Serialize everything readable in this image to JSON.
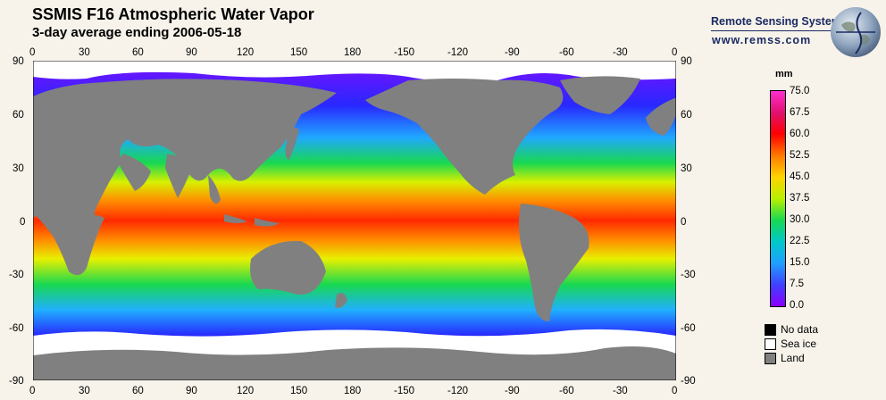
{
  "header": {
    "title": "SSMIS F16 Atmospheric Water Vapor",
    "subtitle": "3-day average ending 2006-05-18"
  },
  "branding": {
    "name": "Remote Sensing Systems",
    "url": "www.remss.com",
    "logo_icon": "globe-logo-icon"
  },
  "map": {
    "projection": "equirectangular",
    "lon_ticks_top": [
      "0",
      "30",
      "60",
      "90",
      "120",
      "150",
      "180",
      "-150",
      "-120",
      "-90",
      "-60",
      "-30",
      "0"
    ],
    "lon_ticks_bottom": [
      "0",
      "30",
      "60",
      "90",
      "120",
      "150",
      "180",
      "-150",
      "-120",
      "-90",
      "-60",
      "-30",
      "0"
    ],
    "lat_ticks_left": [
      "90",
      "60",
      "30",
      "0",
      "-30",
      "-60",
      "-90"
    ],
    "lat_ticks_right": [
      "90",
      "60",
      "30",
      "0",
      "-30",
      "-60",
      "-90"
    ],
    "land_color": "#808080",
    "sea_ice_color": "#ffffff",
    "no_data_color": "#000000"
  },
  "colorbar": {
    "unit": "mm",
    "labels": [
      "75.0",
      "67.5",
      "60.0",
      "52.5",
      "45.0",
      "37.5",
      "30.0",
      "22.5",
      "15.0",
      "7.5",
      "0.0"
    ],
    "min": 0,
    "max": 75,
    "colors": [
      "#ff2fd0",
      "#e0106f",
      "#ff0000",
      "#ff7a00",
      "#ffd400",
      "#b8f000",
      "#18d850",
      "#00c8c8",
      "#20a0ff",
      "#4040ff",
      "#8a00ff"
    ]
  },
  "legend": [
    {
      "label": "No data",
      "color": "#000000"
    },
    {
      "label": "Sea ice",
      "color": "#ffffff"
    },
    {
      "label": "Land",
      "color": "#808080"
    }
  ]
}
